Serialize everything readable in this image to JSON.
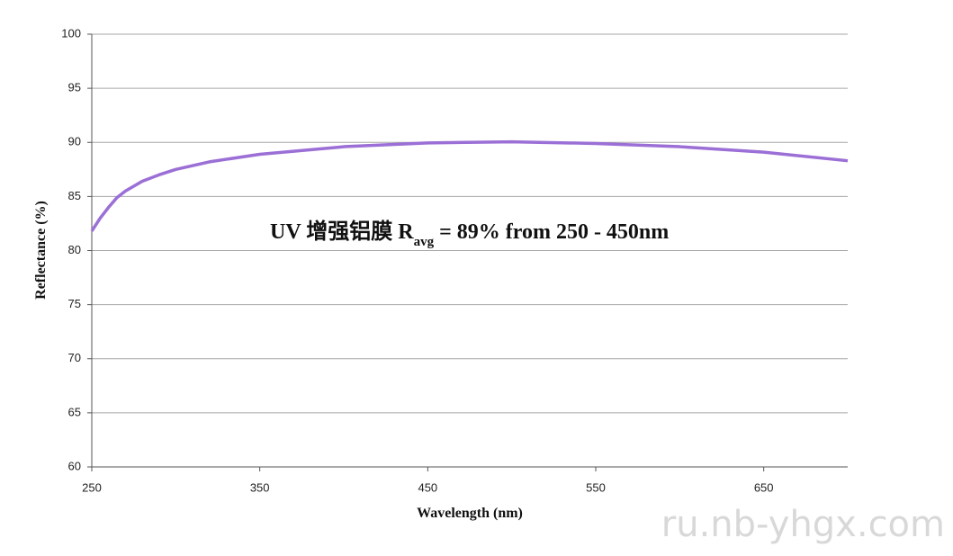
{
  "chart_data": {
    "type": "line",
    "xlabel": "Wavelength (nm)",
    "ylabel": "Reflectance (%)",
    "annotation": {
      "prefix": "UV 增强铝膜 R",
      "subscript": "avg",
      "suffix": " = 89% from 250 - 450nm"
    },
    "watermark": "ru.nb-yhgx.com",
    "xlim": [
      250,
      700
    ],
    "xticks": [
      250,
      350,
      450,
      550,
      650
    ],
    "ylim": [
      60,
      100
    ],
    "yticks": [
      60,
      65,
      70,
      75,
      80,
      85,
      90,
      95,
      100
    ],
    "grid": true,
    "x": [
      250,
      255,
      260,
      265,
      270,
      280,
      290,
      300,
      320,
      350,
      400,
      450,
      500,
      550,
      600,
      650,
      700
    ],
    "series": [
      {
        "color": "#9b6fd6",
        "values": [
          81.8,
          83.0,
          84.0,
          84.9,
          85.5,
          86.4,
          87.0,
          87.5,
          88.2,
          88.9,
          89.6,
          89.95,
          90.05,
          89.9,
          89.6,
          89.1,
          88.3
        ]
      }
    ]
  }
}
